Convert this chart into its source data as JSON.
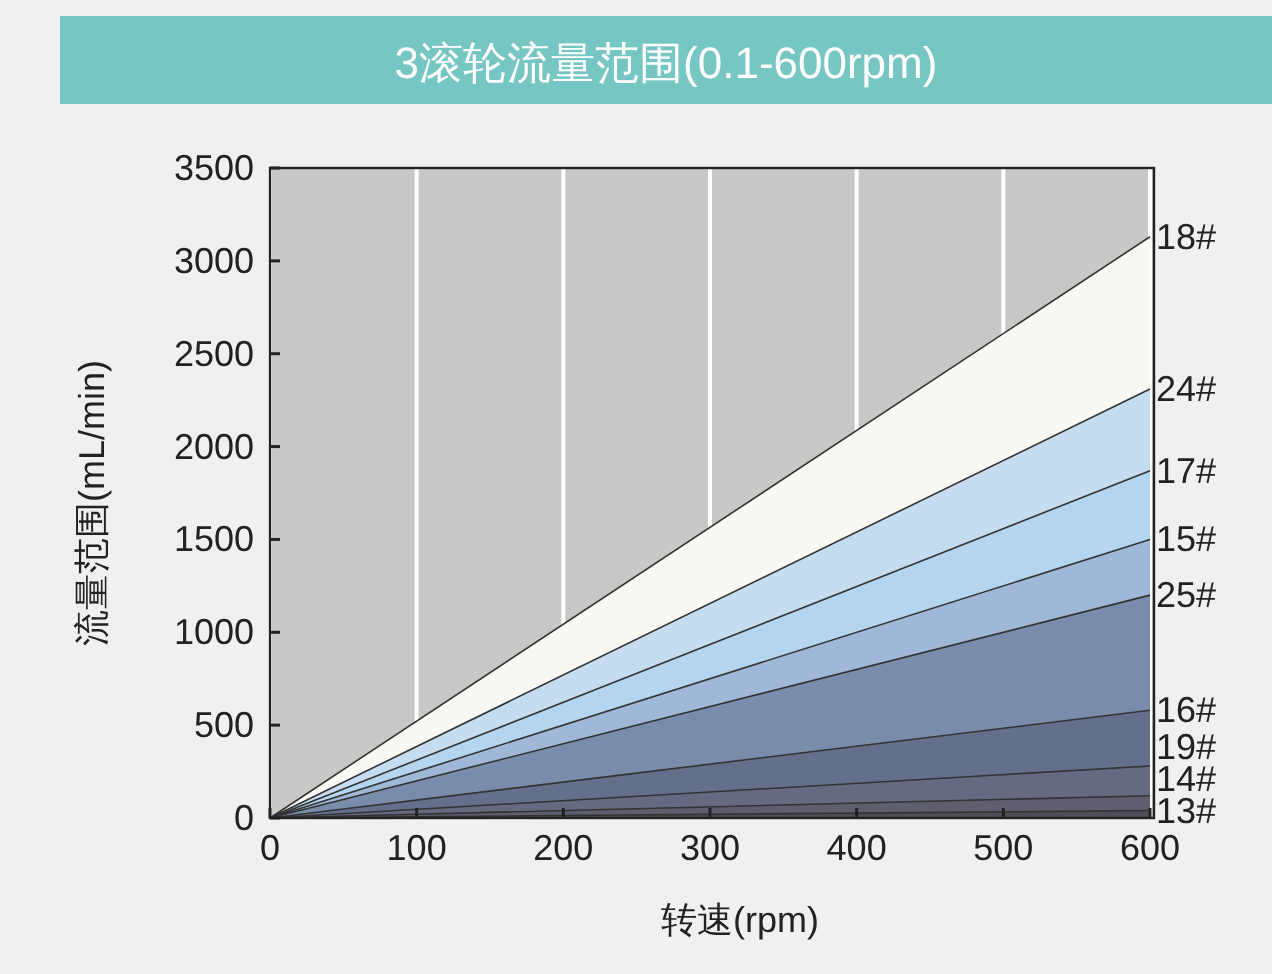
{
  "chart_data": {
    "type": "area",
    "title": "3滚轮流量范围(0.1-600rpm)",
    "xlabel": "转速(rpm)",
    "ylabel": "流量范围(mL/min)",
    "x": [
      0,
      600
    ],
    "xlim": [
      0,
      600
    ],
    "ylim": [
      0,
      3500
    ],
    "xticks": [
      0,
      100,
      200,
      300,
      400,
      500,
      600
    ],
    "yticks": [
      0,
      500,
      1000,
      1500,
      2000,
      2500,
      3000,
      3500
    ],
    "grid": "x",
    "series": [
      {
        "name": "18#",
        "color": "#faf8f2",
        "values": [
          0,
          3130
        ]
      },
      {
        "name": "24#",
        "color": "#c6ddf1",
        "values": [
          0,
          2310
        ]
      },
      {
        "name": "17#",
        "color": "#b3d5ef",
        "values": [
          0,
          1870
        ]
      },
      {
        "name": "15#",
        "color": "#9fb8d8",
        "values": [
          0,
          1500
        ]
      },
      {
        "name": "25#",
        "color": "#7a8cab",
        "values": [
          0,
          1200
        ]
      },
      {
        "name": "16#",
        "color": "#646f8b",
        "values": [
          0,
          580
        ]
      },
      {
        "name": "19#",
        "color": "#666a80",
        "values": [
          0,
          280
        ]
      },
      {
        "name": "14#",
        "color": "#5e5e6e",
        "values": [
          0,
          120
        ]
      },
      {
        "name": "13#",
        "color": "#4e4e58",
        "values": [
          0,
          40
        ]
      }
    ]
  }
}
